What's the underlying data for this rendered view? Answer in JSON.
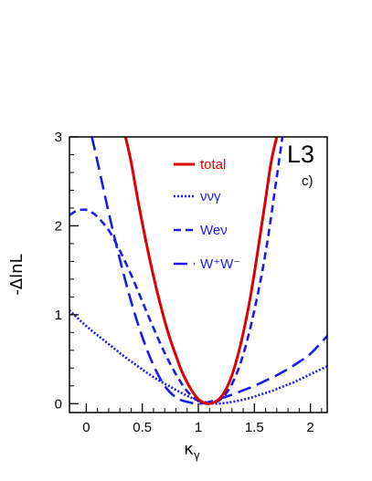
{
  "chart_data": {
    "type": "line",
    "experiment_label": "L3",
    "panel_label": "c)",
    "xlabel": "κ",
    "xlabel_sub": "γ",
    "ylabel": "-ΔlnL",
    "xlim": [
      -0.15,
      2.15
    ],
    "ylim": [
      -0.1,
      3.0
    ],
    "xticks": [
      0,
      0.5,
      1,
      1.5,
      2
    ],
    "xtick_labels": [
      "0",
      "0.5",
      "1",
      "1.5",
      "2"
    ],
    "yticks": [
      0,
      1,
      2,
      3
    ],
    "ytick_labels": [
      "0",
      "1",
      "2",
      "3"
    ],
    "grid": false,
    "legend_position": "top-right",
    "series": [
      {
        "name": "total",
        "color": "#dd0000",
        "style": "solid",
        "x": [
          0.35,
          0.4,
          0.45,
          0.5,
          0.55,
          0.6,
          0.65,
          0.7,
          0.75,
          0.8,
          0.85,
          0.9,
          0.95,
          1.0,
          1.05,
          1.1,
          1.15,
          1.2,
          1.25,
          1.3,
          1.35,
          1.4,
          1.45,
          1.5,
          1.55,
          1.6,
          1.65,
          1.7
        ],
        "y": [
          3.0,
          2.72,
          2.36,
          2.03,
          1.72,
          1.43,
          1.17,
          0.93,
          0.72,
          0.54,
          0.37,
          0.24,
          0.13,
          0.05,
          0.01,
          0.0,
          0.02,
          0.07,
          0.17,
          0.32,
          0.53,
          0.79,
          1.1,
          1.47,
          1.88,
          2.3,
          2.72,
          3.0
        ]
      },
      {
        "name": "ννγ",
        "color": "#1a1aee",
        "style": "dotted",
        "x": [
          -0.15,
          -0.05,
          0.05,
          0.15,
          0.25,
          0.35,
          0.45,
          0.55,
          0.65,
          0.75,
          0.85,
          0.95,
          1.05,
          1.15,
          1.25,
          1.35,
          1.45,
          1.55,
          1.65,
          1.75,
          1.85,
          1.95,
          2.05,
          2.15
        ],
        "y": [
          1.05,
          0.93,
          0.82,
          0.72,
          0.62,
          0.52,
          0.43,
          0.34,
          0.26,
          0.19,
          0.12,
          0.06,
          0.02,
          0.0,
          0.01,
          0.03,
          0.06,
          0.1,
          0.14,
          0.19,
          0.24,
          0.3,
          0.36,
          0.42
        ]
      },
      {
        "name": "Weν",
        "color": "#1a1aee",
        "style": "short-dash",
        "x": [
          -0.15,
          -0.1,
          -0.05,
          0.0,
          0.05,
          0.1,
          0.2,
          0.3,
          0.4,
          0.5,
          0.6,
          0.7,
          0.8,
          0.9,
          1.0,
          1.1,
          1.2,
          1.3,
          1.4,
          1.5,
          1.6,
          1.7,
          1.75
        ],
        "y": [
          2.12,
          2.16,
          2.18,
          2.18,
          2.15,
          2.1,
          1.95,
          1.72,
          1.45,
          1.15,
          0.85,
          0.57,
          0.33,
          0.14,
          0.03,
          0.0,
          0.05,
          0.22,
          0.55,
          1.05,
          1.7,
          2.55,
          3.0
        ]
      },
      {
        "name": "W⁺W⁻",
        "color": "#1a1aee",
        "style": "long-dash",
        "x": [
          0.05,
          0.1,
          0.2,
          0.3,
          0.4,
          0.5,
          0.6,
          0.7,
          0.8,
          0.9,
          1.0,
          1.1,
          1.2,
          1.3,
          1.4,
          1.5,
          1.6,
          1.7,
          1.8,
          1.9,
          2.0,
          2.15
        ],
        "y": [
          3.0,
          2.72,
          2.15,
          1.62,
          1.15,
          0.75,
          0.43,
          0.2,
          0.07,
          0.02,
          0.0,
          0.02,
          0.06,
          0.1,
          0.15,
          0.2,
          0.26,
          0.32,
          0.39,
          0.47,
          0.56,
          0.76
        ]
      }
    ]
  }
}
